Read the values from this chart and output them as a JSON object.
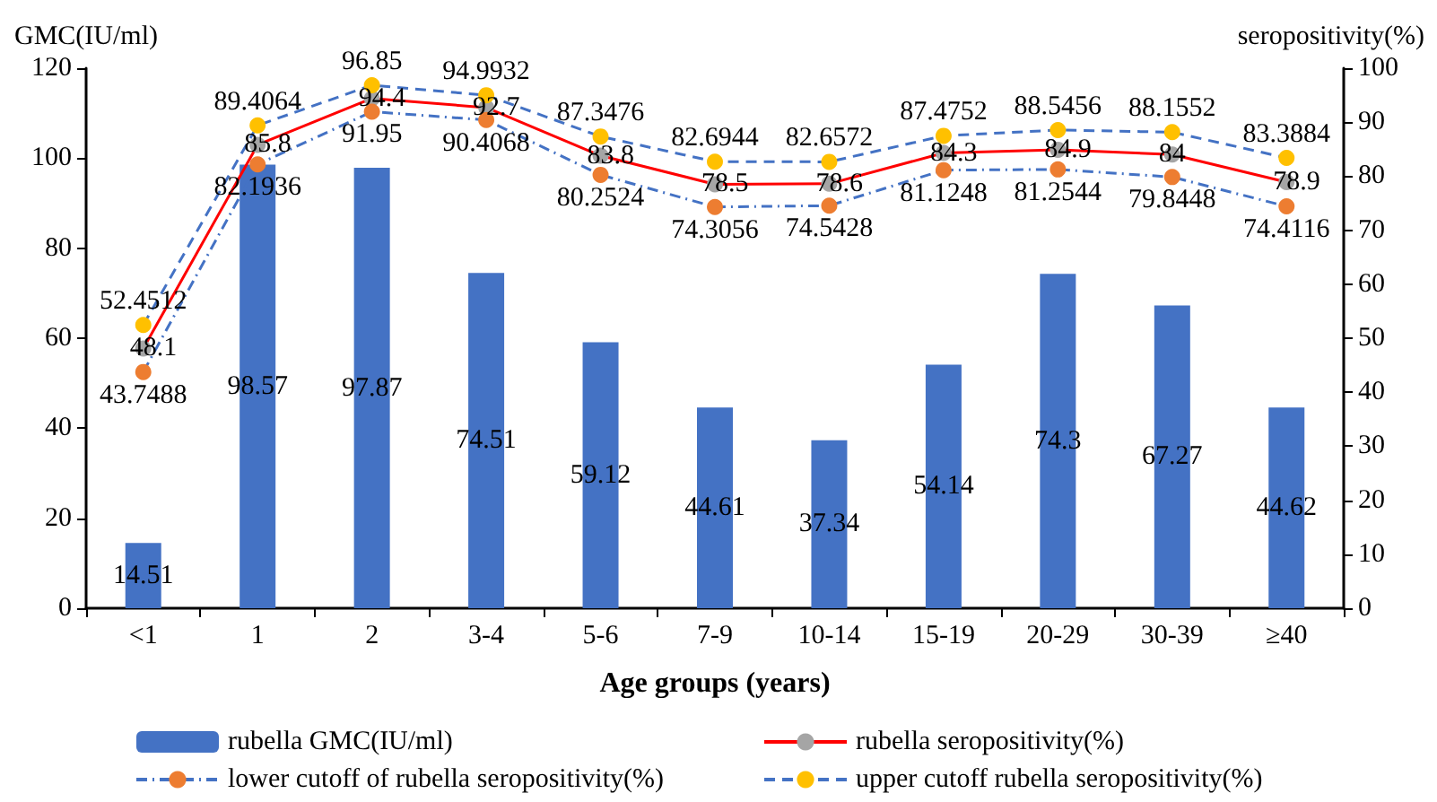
{
  "chart_data": {
    "type": "bar",
    "xlabel": "Age groups (years)",
    "ylabel": "GMC(IU/ml)",
    "y2label": "seropositivity(%)",
    "categories": [
      "<1",
      "1",
      "2",
      "3-4",
      "5-6",
      "7-9",
      "10-14",
      "15-19",
      "20-29",
      "30-39",
      "≥40"
    ],
    "series": [
      {
        "name": "rubella GMC(IU/ml)",
        "color": "#4472c4",
        "values": [
          14.51,
          98.57,
          97.87,
          74.51,
          59.12,
          44.61,
          37.34,
          54.14,
          74.3,
          67.27,
          44.62
        ]
      },
      {
        "name": "rubella seropositivity(%)",
        "type": "line",
        "axis": "y2",
        "color": "#ff0000",
        "colors": [
          "#a5a5a5",
          "#a5a5a5",
          "#a5a5a5",
          "#a5a5a5",
          "#a5a5a5",
          "#a5a5a5",
          "#a5a5a5",
          "#a5a5a5",
          "#a5a5a5",
          "#a5a5a5",
          "#a5a5a5"
        ],
        "line_style": "solid",
        "values": [
          48.1,
          85.8,
          94.4,
          92.7,
          83.8,
          78.5,
          78.6,
          84.3,
          84.9,
          84,
          78.9
        ]
      },
      {
        "name": "lower cutoff of rubella seropositivity(%)",
        "type": "line",
        "axis": "y2",
        "color": "#4472c4",
        "colors": [
          "#ed7d31",
          "#ed7d31",
          "#ed7d31",
          "#ed7d31",
          "#ed7d31",
          "#ed7d31",
          "#ed7d31",
          "#ed7d31",
          "#ed7d31",
          "#ed7d31",
          "#ed7d31"
        ],
        "line_style": "dashdot",
        "values": [
          43.7488,
          82.1936,
          91.95,
          90.4068,
          80.2524,
          74.3056,
          74.5428,
          81.1248,
          81.2544,
          79.8448,
          74.4116
        ]
      },
      {
        "name": "upper cutoff rubella seropositivity(%)",
        "type": "line",
        "axis": "y2",
        "color": "#4472c4",
        "colors": [
          "#ffc000",
          "#ffc000",
          "#ffc000",
          "#ffc000",
          "#ffc000",
          "#ffc000",
          "#ffc000",
          "#ffc000",
          "#ffc000",
          "#ffc000",
          "#ffc000"
        ],
        "line_style": "dashed",
        "values": [
          52.4512,
          89.4064,
          96.85,
          94.9932,
          87.3476,
          82.6944,
          82.6572,
          87.4752,
          88.5456,
          88.1552,
          83.3884
        ]
      }
    ],
    "ylim": [
      0,
      120
    ],
    "yticks": [
      0,
      20,
      40,
      60,
      80,
      100,
      120
    ],
    "y2lim": [
      0,
      100
    ],
    "y2ticks": [
      0,
      10,
      20,
      30,
      40,
      50,
      60,
      70,
      80,
      90,
      100
    ],
    "data_labels": true,
    "grid": false,
    "legend": "bottom",
    "marker": "circle"
  }
}
